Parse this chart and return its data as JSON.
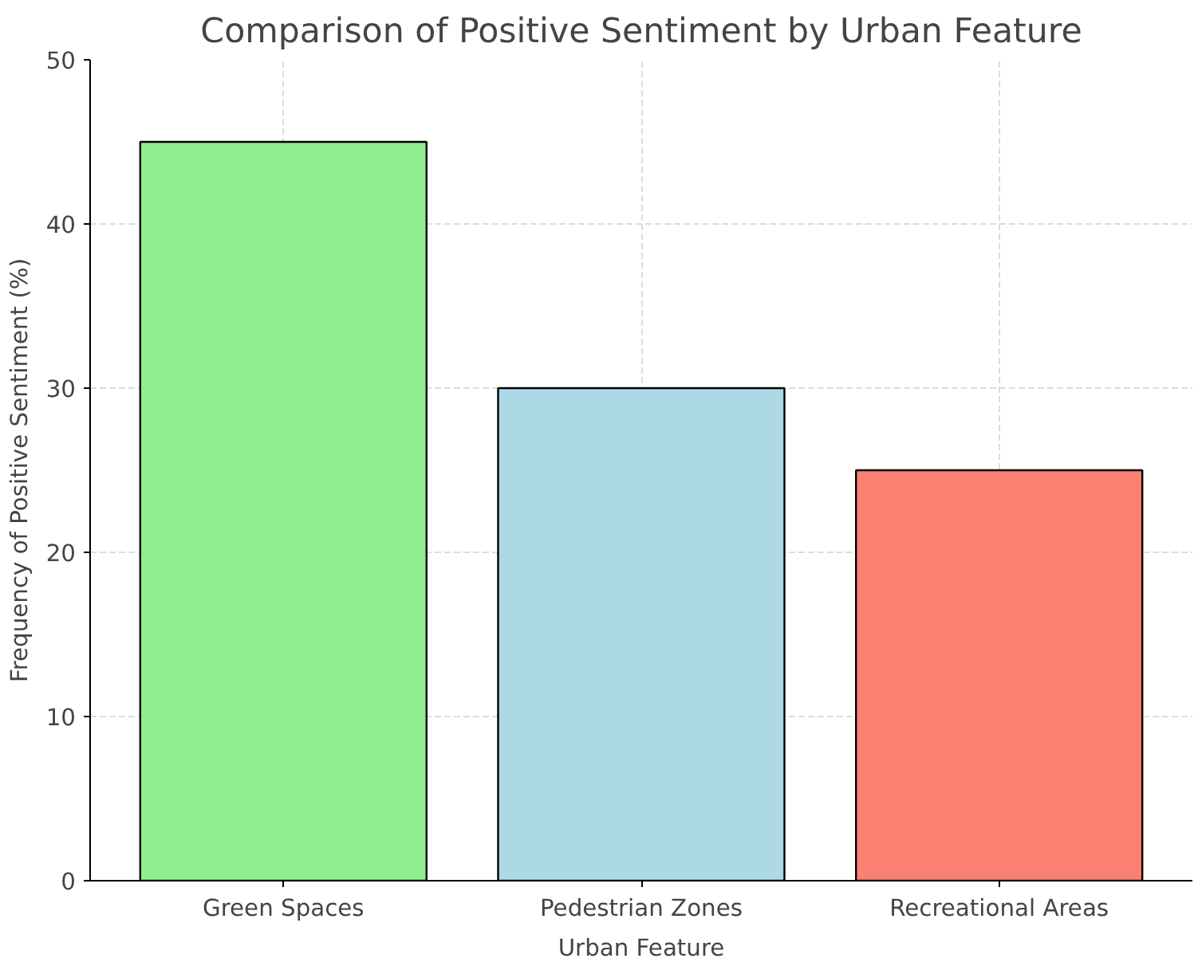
{
  "chart_data": {
    "type": "bar",
    "title": "Comparison of Positive Sentiment by Urban Feature",
    "xlabel": "Urban Feature",
    "ylabel": "Frequency of Positive Sentiment (%)",
    "categories": [
      "Green Spaces",
      "Pedestrian Zones",
      "Recreational Areas"
    ],
    "values": [
      45,
      30,
      25
    ],
    "colors": [
      "#90ee90",
      "#add8e6",
      "#fa8072"
    ],
    "ylim": [
      0,
      50
    ],
    "yticks": [
      0,
      10,
      20,
      30,
      40,
      50
    ],
    "grid": true
  }
}
